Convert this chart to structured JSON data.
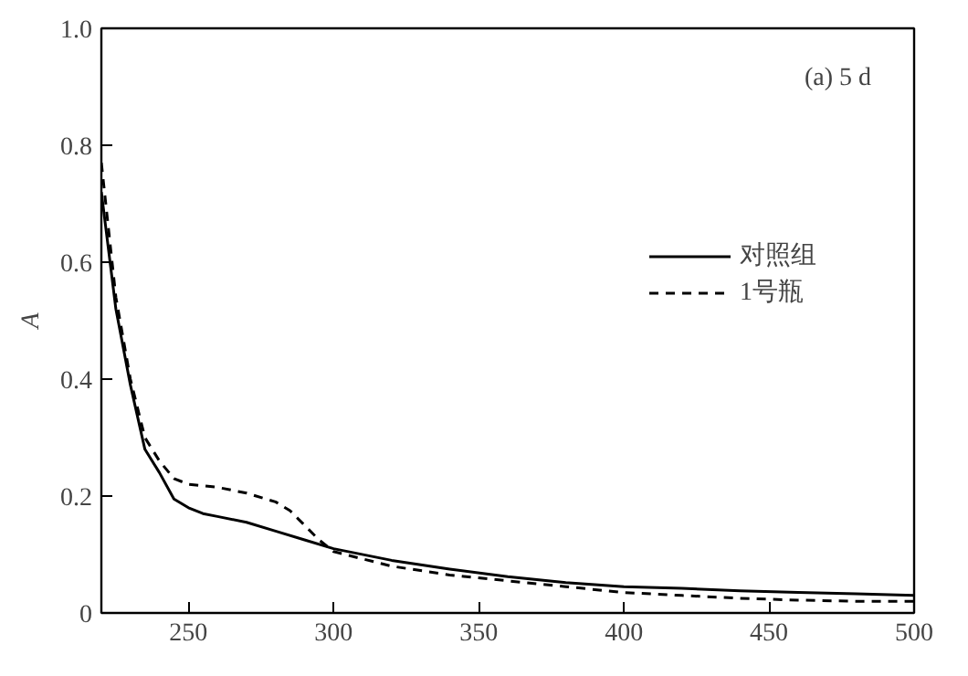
{
  "chart_data": {
    "type": "line",
    "ylabel": "A",
    "annotations": [
      "(a) 5 d"
    ],
    "xlim": [
      220,
      500
    ],
    "ylim": [
      0,
      1
    ],
    "xticks": [
      250,
      300,
      350,
      400,
      450,
      500
    ],
    "yticks": [
      0,
      0.2,
      0.4,
      0.6,
      0.8,
      {
        "value": 1,
        "label": "1.0"
      }
    ],
    "grid": false,
    "legend": "top right",
    "tick_labels": true,
    "series": [
      {
        "name": "对照组",
        "color": "#000000",
        "line_style": "solid",
        "x": [
          220,
          225,
          230,
          235,
          240,
          245,
          250,
          255,
          260,
          270,
          280,
          290,
          300,
          320,
          340,
          360,
          380,
          400,
          420,
          440,
          460,
          480,
          500
        ],
        "values": [
          0.72,
          0.52,
          0.39,
          0.28,
          0.24,
          0.195,
          0.18,
          0.17,
          0.165,
          0.155,
          0.14,
          0.125,
          0.11,
          0.09,
          0.075,
          0.062,
          0.052,
          0.045,
          0.042,
          0.038,
          0.035,
          0.033,
          0.03
        ]
      },
      {
        "name": "1号瓶",
        "color": "#000000",
        "line_style": "dashed",
        "x": [
          220,
          225,
          230,
          235,
          240,
          245,
          250,
          260,
          270,
          280,
          285,
          290,
          295,
          300,
          320,
          340,
          360,
          380,
          400,
          420,
          440,
          460,
          480,
          500
        ],
        "values": [
          0.77,
          0.54,
          0.4,
          0.3,
          0.26,
          0.23,
          0.22,
          0.215,
          0.205,
          0.19,
          0.175,
          0.15,
          0.125,
          0.105,
          0.08,
          0.065,
          0.055,
          0.045,
          0.035,
          0.03,
          0.025,
          0.022,
          0.02,
          0.02
        ]
      }
    ]
  }
}
